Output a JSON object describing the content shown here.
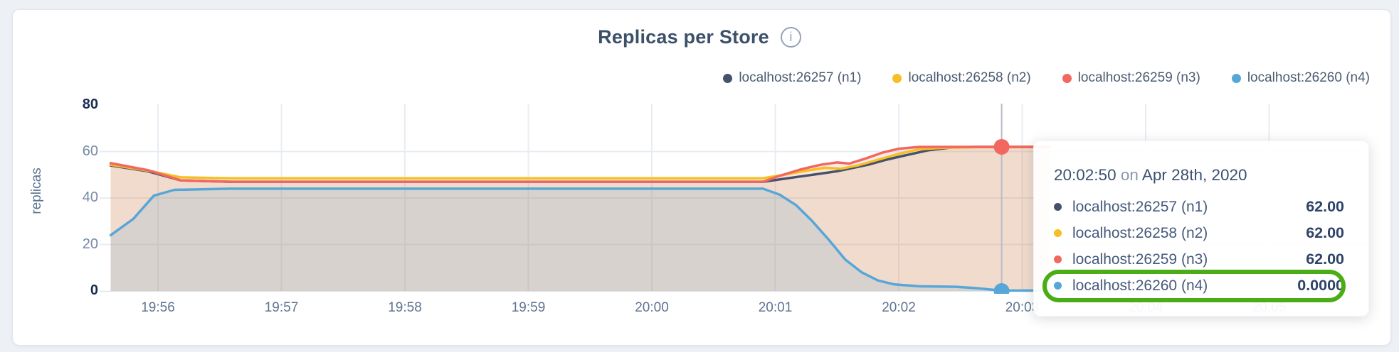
{
  "header": {
    "title": "Replicas per Store",
    "info_icon": "i"
  },
  "legend": {
    "items": [
      {
        "label": "localhost:26257 (n1)",
        "color": "#45526b"
      },
      {
        "label": "localhost:26258 (n2)",
        "color": "#f6bf26"
      },
      {
        "label": "localhost:26259 (n3)",
        "color": "#f2675f"
      },
      {
        "label": "localhost:26260 (n4)",
        "color": "#57a6d8"
      }
    ]
  },
  "y_axis": {
    "label": "replicas",
    "ticks": [
      {
        "value": 80,
        "bold": true
      },
      {
        "value": 60,
        "bold": false
      },
      {
        "value": 40,
        "bold": false
      },
      {
        "value": 20,
        "bold": false
      },
      {
        "value": 0,
        "bold": true
      }
    ]
  },
  "chart_data": {
    "type": "area",
    "title": "Replicas per Store",
    "xlabel": "",
    "ylabel": "replicas",
    "ylim": [
      0,
      80
    ],
    "y_gridlines": [
      20,
      40,
      60
    ],
    "grid": true,
    "legend_position": "top-right",
    "time_base": "19:55:00",
    "x_ticks": [
      {
        "label": "19:56",
        "t": 60
      },
      {
        "label": "19:57",
        "t": 120
      },
      {
        "label": "19:58",
        "t": 180
      },
      {
        "label": "19:59",
        "t": 240
      },
      {
        "label": "20:00",
        "t": 300
      },
      {
        "label": "20:01",
        "t": 360
      },
      {
        "label": "20:02",
        "t": 420
      },
      {
        "label": "20:03",
        "t": 480
      },
      {
        "label": "20:04",
        "t": 540
      },
      {
        "label": "20:05",
        "t": 600
      }
    ],
    "series": [
      {
        "name": "localhost:26257 (n1)",
        "color": "#45526b",
        "fill_alpha": 0.07,
        "points": [
          [
            37,
            54
          ],
          [
            55,
            51.5
          ],
          [
            71,
            47.6
          ],
          [
            95,
            47
          ],
          [
            354,
            47
          ],
          [
            366,
            48.5
          ],
          [
            378,
            50
          ],
          [
            390,
            51.5
          ],
          [
            398,
            53
          ],
          [
            406,
            54.5
          ],
          [
            414,
            56.5
          ],
          [
            424,
            58.5
          ],
          [
            434,
            60.5
          ],
          [
            446,
            61.8
          ],
          [
            458,
            62
          ],
          [
            493,
            62
          ]
        ]
      },
      {
        "name": "localhost:26258 (n2)",
        "color": "#f6bf26",
        "fill_alpha": 0.11,
        "points": [
          [
            37,
            54.3
          ],
          [
            55,
            51.8
          ],
          [
            71,
            48.9
          ],
          [
            95,
            48.5
          ],
          [
            354,
            48.5
          ],
          [
            364,
            50
          ],
          [
            374,
            51.6
          ],
          [
            384,
            53
          ],
          [
            392,
            52.6
          ],
          [
            400,
            54
          ],
          [
            410,
            56.5
          ],
          [
            420,
            59
          ],
          [
            430,
            61
          ],
          [
            442,
            61.6
          ],
          [
            465,
            62
          ],
          [
            493,
            62
          ]
        ]
      },
      {
        "name": "localhost:26259 (n3)",
        "color": "#f2675f",
        "fill_alpha": 0.13,
        "points": [
          [
            37,
            55
          ],
          [
            55,
            52
          ],
          [
            71,
            47.6
          ],
          [
            95,
            47
          ],
          [
            354,
            47
          ],
          [
            362,
            49.5
          ],
          [
            372,
            52.2
          ],
          [
            382,
            54.3
          ],
          [
            390,
            55.3
          ],
          [
            396,
            54.8
          ],
          [
            404,
            57
          ],
          [
            412,
            59.5
          ],
          [
            420,
            61.2
          ],
          [
            430,
            62
          ],
          [
            493,
            62
          ]
        ]
      },
      {
        "name": "localhost:26260 (n4)",
        "color": "#57a6d8",
        "fill_alpha": 0.16,
        "points": [
          [
            37,
            24
          ],
          [
            48,
            31
          ],
          [
            58,
            41
          ],
          [
            68,
            43.5
          ],
          [
            95,
            44
          ],
          [
            354,
            44
          ],
          [
            362,
            41.5
          ],
          [
            370,
            37
          ],
          [
            378,
            30
          ],
          [
            386,
            22
          ],
          [
            394,
            13.5
          ],
          [
            402,
            8
          ],
          [
            410,
            4.5
          ],
          [
            418,
            2.8
          ],
          [
            430,
            2
          ],
          [
            448,
            1.8
          ],
          [
            458,
            1.2
          ],
          [
            466,
            0.5
          ],
          [
            472,
            0.2
          ],
          [
            493,
            0.15
          ]
        ]
      }
    ],
    "hover": {
      "t": 470,
      "time_label": "20:02:50",
      "markers": [
        {
          "series": 2,
          "value": 62
        },
        {
          "series": 3,
          "value": 0
        }
      ]
    }
  },
  "tooltip": {
    "time": "20:02:50",
    "conjunction": "on",
    "date": "Apr 28th, 2020",
    "rows": [
      {
        "label": "localhost:26257 (n1)",
        "value": "62.00",
        "color": "#45526b",
        "highlighted": false
      },
      {
        "label": "localhost:26258 (n2)",
        "value": "62.00",
        "color": "#f6bf26",
        "highlighted": false
      },
      {
        "label": "localhost:26259 (n3)",
        "value": "62.00",
        "color": "#f2675f",
        "highlighted": false
      },
      {
        "label": "localhost:26260 (n4)",
        "value": "0.0000",
        "color": "#57a6d8",
        "highlighted": true
      }
    ],
    "highlight_ring_color": "#4bad16"
  },
  "colors": {
    "grid": "#e9ecf2",
    "axis_line": "#e0e4ea",
    "crosshair": "#b6bcc8",
    "accent_green": "#4bad16"
  }
}
